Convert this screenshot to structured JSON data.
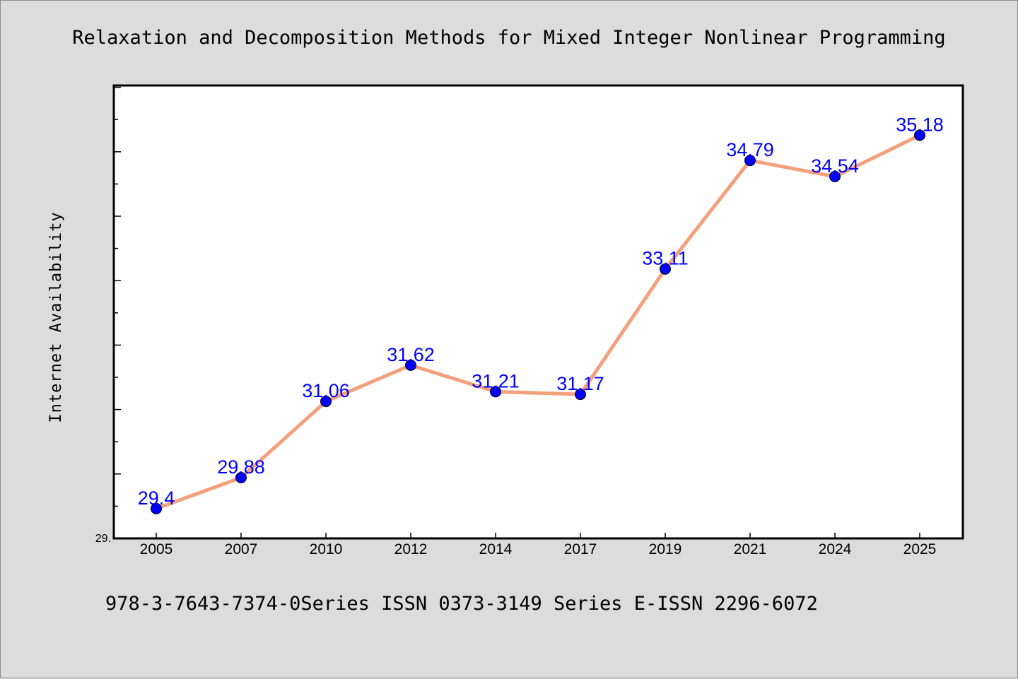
{
  "chart_data": {
    "type": "line",
    "title": "Relaxation and Decomposition Methods for Mixed Integer Nonlinear Programming",
    "xlabel": "",
    "ylabel": "Internet Availability",
    "categories": [
      "2005",
      "2007",
      "2010",
      "2012",
      "2014",
      "2017",
      "2019",
      "2021",
      "2024",
      "2025"
    ],
    "values": [
      29.4,
      29.88,
      31.06,
      31.62,
      31.21,
      31.17,
      33.11,
      34.79,
      34.54,
      35.18
    ],
    "data_labels": [
      "29.4",
      "29.88",
      "31.06",
      "31.62",
      "31.21",
      "31.17",
      "33.11",
      "34.79",
      "34.54",
      "35.18"
    ],
    "ytick_label": "29.",
    "ylim": [
      28.94,
      35.95
    ],
    "grid": false,
    "line_color": "#f4a07c",
    "marker_color": "#0000ff",
    "label_color": "#0000ff"
  },
  "footer": "978-3-7643-7374-0Series ISSN 0373-3149 Series E-ISSN 2296-6072"
}
